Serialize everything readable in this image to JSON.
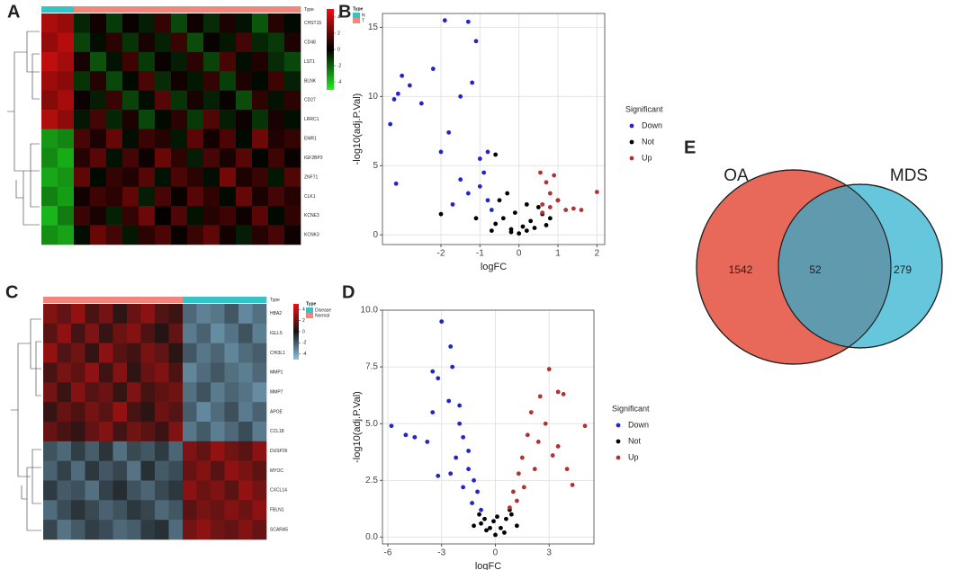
{
  "chart_data": [
    {
      "type": "heatmap",
      "panel": "A",
      "annotation_label": "Type",
      "legend_title": "Type",
      "groups": [
        {
          "name": "N",
          "color": "#35c3c8"
        },
        {
          "name": "T",
          "color": "#f0877a"
        }
      ],
      "columns": [
        "N",
        "N",
        "T",
        "T",
        "T",
        "T",
        "T",
        "T",
        "T",
        "T",
        "T",
        "T",
        "T",
        "T",
        "T",
        "T"
      ],
      "rows": [
        "CHST15",
        "CD48",
        "LST1",
        "BLNK",
        "CD27",
        "LRRC1",
        "EMR1",
        "IGF2BP3",
        "ZNF71",
        "CLK1",
        "KCNE3",
        "KCNK3"
      ],
      "clim": [
        -5,
        5
      ],
      "cticks": [
        4,
        2,
        0,
        -2,
        -4
      ],
      "colors": [
        "#22ee22",
        "#000000",
        "#ee1111"
      ],
      "values": [
        [
          3.6,
          3.2,
          -0.8,
          0.4,
          -1.2,
          0.2,
          -0.6,
          1.1,
          -1.5,
          0.3,
          -0.9,
          0.6,
          -0.4,
          -1.8,
          0.8,
          -0.2
        ],
        [
          3.1,
          3.8,
          -1.4,
          -0.3,
          0.9,
          -1.1,
          0.5,
          -0.7,
          1.2,
          -1.6,
          0.2,
          -0.5,
          1.4,
          -0.8,
          -1.2,
          0.6
        ],
        [
          4.0,
          3.4,
          0.5,
          -1.7,
          -0.4,
          1.3,
          -1.2,
          0.2,
          -0.6,
          0.9,
          -1.4,
          1.5,
          -0.3,
          0.7,
          -0.9,
          -1.5
        ],
        [
          3.3,
          2.9,
          -1.1,
          0.8,
          -1.5,
          -0.2,
          1.6,
          -0.9,
          0.4,
          -0.5,
          1.1,
          -1.3,
          0.6,
          -0.2,
          1.3,
          -0.7
        ],
        [
          2.8,
          3.5,
          0.3,
          -0.6,
          1.2,
          -1.4,
          -0.3,
          1.8,
          -1.1,
          0.5,
          -0.7,
          0.2,
          -1.6,
          1.0,
          -0.4,
          0.9
        ],
        [
          3.7,
          3.0,
          -0.5,
          1.4,
          -0.8,
          0.6,
          -1.5,
          -0.2,
          0.9,
          -1.2,
          1.7,
          -0.6,
          0.3,
          -1.1,
          0.5,
          -0.3
        ],
        [
          -3.2,
          -2.8,
          1.5,
          0.6,
          2.1,
          -0.3,
          1.2,
          0.8,
          -0.5,
          1.9,
          0.4,
          1.6,
          -0.2,
          2.3,
          0.7,
          1.1
        ],
        [
          -2.9,
          -3.6,
          0.8,
          1.9,
          -0.4,
          1.4,
          0.3,
          2.2,
          1.0,
          -0.6,
          1.5,
          0.5,
          1.8,
          -0.1,
          1.3,
          0.2
        ],
        [
          -3.5,
          -3.1,
          2.0,
          -0.2,
          1.1,
          0.7,
          1.8,
          -0.4,
          1.6,
          0.9,
          -0.3,
          2.4,
          0.6,
          1.2,
          -0.5,
          1.7
        ],
        [
          -2.7,
          -3.3,
          0.4,
          1.3,
          0.9,
          2.0,
          -0.6,
          1.5,
          0.2,
          1.8,
          1.0,
          -0.2,
          2.1,
          0.5,
          1.4,
          0.8
        ],
        [
          -3.8,
          -2.6,
          1.2,
          0.5,
          -0.7,
          1.1,
          2.3,
          0.1,
          1.7,
          -0.4,
          0.8,
          1.3,
          0.3,
          1.9,
          -0.2,
          1.0
        ],
        [
          -3.0,
          -3.4,
          -0.3,
          2.2,
          1.4,
          -0.5,
          0.9,
          1.6,
          0.2,
          1.2,
          2.0,
          0.4,
          -0.6,
          0.8,
          1.5,
          0.3
        ]
      ]
    },
    {
      "type": "scatter",
      "panel": "B",
      "xlabel": "logFC",
      "ylabel": "-log10(adj.P.Val)",
      "legend_title": "Significant",
      "xlim": [
        -3.5,
        2.2
      ],
      "xticks": [
        -2,
        -1,
        0,
        1,
        2
      ],
      "ylim": [
        -0.7,
        16
      ],
      "yticks": [
        0,
        5,
        10,
        15
      ],
      "grid": true,
      "series": [
        {
          "name": "Down",
          "color": "#2424cc",
          "x": [
            -3.3,
            -3.2,
            -3.1,
            -3.0,
            -2.8,
            -3.15,
            -2.5,
            -2.2,
            -1.9,
            -1.5,
            -1.3,
            -1.1,
            -1.2,
            -2.0,
            -1.5,
            -1.0,
            -0.9,
            -1.3,
            -0.8,
            -1.7,
            -0.7,
            -1.0,
            -0.8,
            -1.8
          ],
          "values": [
            8,
            9.8,
            10.2,
            11.5,
            10.8,
            3.7,
            9.5,
            12,
            15.5,
            10,
            15.4,
            14,
            11,
            6,
            4,
            5.5,
            4.5,
            3,
            2.5,
            2.2,
            1.8,
            3.5,
            6,
            7.4
          ]
        },
        {
          "name": "Not",
          "color": "#000000",
          "x": [
            0,
            0.2,
            -0.2,
            0.3,
            -0.4,
            0.5,
            -0.5,
            0.1,
            -0.1,
            0.4,
            -0.6,
            0.6,
            -0.3,
            -0.6,
            0.2,
            -0.2,
            0.7,
            -0.7,
            0.8,
            -1.1,
            -2.0,
            1.0
          ],
          "values": [
            0.1,
            0.3,
            0.4,
            1,
            1.2,
            2,
            2.5,
            0.6,
            1.6,
            0.5,
            0.8,
            1.5,
            3,
            5.8,
            2.2,
            0.2,
            0.7,
            0.3,
            1.2,
            1.2,
            1.5,
            2.5
          ]
        },
        {
          "name": "Up",
          "color": "#b03232",
          "x": [
            0.55,
            0.7,
            0.8,
            0.9,
            1.0,
            1.2,
            1.4,
            1.6,
            2.0,
            0.6,
            0.8,
            0.6
          ],
          "values": [
            4.5,
            3.8,
            3,
            4.3,
            2.5,
            1.8,
            1.9,
            1.8,
            3.1,
            2.2,
            2,
            1.6
          ]
        }
      ]
    },
    {
      "type": "heatmap",
      "panel": "C",
      "annotation_label": "Type",
      "legend_title": "Type",
      "groups": [
        {
          "name": "Disease",
          "color": "#35c3c8"
        },
        {
          "name": "Normal",
          "color": "#f0877a"
        }
      ],
      "columns": [
        "Normal",
        "Normal",
        "Normal",
        "Normal",
        "Normal",
        "Normal",
        "Normal",
        "Normal",
        "Normal",
        "Normal",
        "Disease",
        "Disease",
        "Disease",
        "Disease",
        "Disease",
        "Disease"
      ],
      "rows": [
        "HBA2",
        "IGLL5",
        "CHI3L1",
        "MMP1",
        "MMP7",
        "APOE",
        "CCL18",
        "DUSP26",
        "MYOC",
        "CXCL14",
        "FBLN1",
        "SCARA5"
      ],
      "clim": [
        -5,
        5
      ],
      "cticks": [
        4,
        2,
        0,
        -2,
        -4
      ],
      "colors": [
        "#8cc4e4",
        "#141414",
        "#ee1111"
      ],
      "values": [
        [
          2.5,
          1.8,
          2.9,
          1.2,
          2.2,
          0.6,
          1.9,
          2.7,
          1.4,
          0.9,
          -2.4,
          -3.1,
          -2.8,
          -1.9,
          -3.3,
          -2.6
        ],
        [
          1.6,
          2.8,
          1.1,
          2.4,
          0.8,
          2.0,
          2.6,
          1.3,
          0.4,
          1.8,
          -2.9,
          -2.2,
          -3.4,
          -2.7,
          -1.8,
          -3.0
        ],
        [
          2.9,
          1.4,
          2.1,
          0.7,
          2.7,
          1.5,
          1.0,
          2.3,
          1.8,
          0.5,
          -1.9,
          -2.8,
          -2.3,
          -3.2,
          -2.5,
          -2.1
        ],
        [
          1.2,
          2.3,
          1.7,
          2.8,
          1.0,
          2.5,
          0.6,
          1.9,
          2.4,
          1.3,
          -3.2,
          -2.5,
          -1.9,
          -2.6,
          -3.0,
          -2.4
        ],
        [
          2.2,
          0.9,
          2.6,
          1.5,
          2.0,
          0.8,
          2.4,
          1.1,
          1.7,
          2.1,
          -2.6,
          -1.8,
          -2.9,
          -2.3,
          -2.7,
          -3.4
        ],
        [
          0.8,
          1.9,
          1.3,
          2.2,
          1.6,
          2.9,
          1.2,
          0.5,
          2.0,
          1.5,
          -2.1,
          -3.3,
          -2.5,
          -1.7,
          -2.9,
          -2.2
        ],
        [
          1.9,
          1.2,
          0.7,
          1.8,
          2.5,
          1.1,
          2.1,
          1.6,
          0.9,
          2.4,
          -2.8,
          -2.0,
          -3.0,
          -2.4,
          -1.6,
          -2.9
        ],
        [
          -1.8,
          -2.4,
          -1.2,
          -2.1,
          -0.9,
          -2.6,
          -1.5,
          -1.9,
          -1.1,
          -2.3,
          2.4,
          1.8,
          2.9,
          2.1,
          1.6,
          2.7
        ],
        [
          -2.2,
          -1.3,
          -2.5,
          -1.0,
          -1.9,
          -1.4,
          -2.7,
          -0.8,
          -2.0,
          -1.6,
          1.9,
          2.6,
          1.5,
          2.8,
          2.3,
          1.7
        ],
        [
          -1.1,
          -2.0,
          -1.7,
          -2.6,
          -1.3,
          -0.7,
          -1.8,
          -2.3,
          -1.5,
          -1.0,
          2.7,
          2.0,
          2.4,
          1.6,
          2.9,
          2.2
        ],
        [
          -2.5,
          -1.6,
          -0.9,
          -1.5,
          -2.2,
          -1.8,
          -1.0,
          -1.4,
          -2.4,
          -1.9,
          1.6,
          2.3,
          1.9,
          2.6,
          2.0,
          2.8
        ],
        [
          -1.4,
          -2.7,
          -2.0,
          -1.2,
          -1.6,
          -2.4,
          -2.1,
          -1.1,
          -0.8,
          -2.5,
          2.2,
          2.8,
          2.1,
          1.8,
          2.5,
          1.9
        ]
      ]
    },
    {
      "type": "scatter",
      "panel": "D",
      "xlabel": "logFC",
      "ylabel": "-log10(adj.P.Val)",
      "legend_title": "Significant",
      "xlim": [
        -6.3,
        5.5
      ],
      "xticks": [
        -6,
        -3,
        0,
        3
      ],
      "ylim": [
        -0.3,
        10
      ],
      "yticks": [
        {
          "value": 0,
          "label": "0.0"
        },
        {
          "value": 2.5,
          "label": "2.5"
        },
        {
          "value": 5,
          "label": "5.0"
        },
        {
          "value": 7.5,
          "label": "7.5"
        },
        {
          "value": 10,
          "label": "10.0"
        }
      ],
      "grid": true,
      "series": [
        {
          "name": "Down",
          "color": "#2424cc",
          "x": [
            -5.8,
            -5,
            -4.5,
            -3.5,
            -3,
            -2.5,
            -2.4,
            -3.5,
            -3.2,
            -2.6,
            -2,
            -1.8,
            -3.8,
            -2.2,
            -1.5,
            -1.2,
            -1,
            -2.5,
            -1.8,
            -1.3,
            -3.2,
            -0.8,
            -2,
            -1.5
          ],
          "values": [
            4.9,
            4.5,
            4.4,
            5.5,
            9.5,
            8.4,
            7.5,
            7.3,
            7,
            6,
            5,
            4.4,
            4.2,
            3.5,
            3,
            2.5,
            2,
            2.8,
            2.2,
            1.5,
            2.7,
            1.2,
            5.8,
            3.8
          ]
        },
        {
          "name": "Not",
          "color": "#000000",
          "x": [
            0,
            0.3,
            -0.3,
            0.6,
            -0.6,
            0.9,
            -0.9,
            0.1,
            -0.1,
            1.2,
            -1.2,
            0.5,
            -0.5,
            0.8,
            -0.8
          ],
          "values": [
            0.1,
            0.4,
            0.4,
            0.8,
            0.8,
            1.0,
            1.0,
            0.9,
            0.7,
            0.5,
            0.5,
            0.2,
            0.3,
            1.2,
            0.6
          ]
        },
        {
          "name": "Up",
          "color": "#b03232",
          "x": [
            0.8,
            1,
            1.3,
            1.5,
            1.8,
            2,
            2.5,
            3,
            3.5,
            3.8,
            5,
            3.5,
            4,
            4.3,
            2.2,
            1.6,
            2.8,
            1.2,
            3.2,
            2.4
          ],
          "values": [
            1.3,
            2,
            2.8,
            3.5,
            4.5,
            5.5,
            6.2,
            7.4,
            6.4,
            6.3,
            4.9,
            4,
            3,
            2.3,
            3,
            2.2,
            5,
            1.6,
            3.6,
            4.2
          ]
        }
      ]
    },
    {
      "type": "venn",
      "panel": "E",
      "sets": [
        {
          "name": "OA",
          "color": "#e8695a"
        },
        {
          "name": "MDS",
          "color": "#66c6dc"
        }
      ],
      "overlap_color": "#5f9aae",
      "values": [
        1542,
        52,
        279
      ]
    }
  ]
}
